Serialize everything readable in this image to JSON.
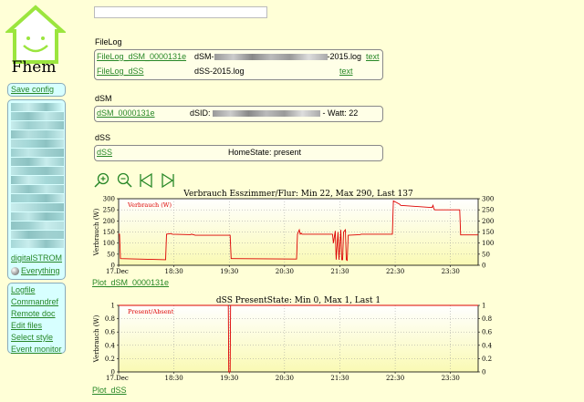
{
  "logo": {
    "text": "Fhem"
  },
  "search": {
    "value": ""
  },
  "menu": {
    "save_config": "Save config",
    "rooms": [
      "digitalSTROM",
      "Everything"
    ],
    "links": [
      "Logfile",
      "Commandref",
      "Remote doc",
      "Edit files",
      "Select style",
      "Event monitor"
    ]
  },
  "filelog": {
    "title": "FileLog",
    "rows": [
      {
        "name": "FileLog_dSM_0000131e",
        "file_prefix": "dSM-",
        "file_suffix": "-2015.log",
        "action": "text"
      },
      {
        "name": "FileLog_dSS",
        "file": "dSS-2015.log",
        "action": "text"
      }
    ]
  },
  "dsm": {
    "title": "dSM",
    "name": "dSM_0000131e",
    "dsid_label": "dSID:",
    "watt": "- Watt: 22"
  },
  "dss": {
    "title": "dSS",
    "name": "dSS",
    "state": "HomeState: present"
  },
  "zoom": {
    "icons": [
      "zoom-in-icon",
      "zoom-out-icon",
      "prev-icon",
      "next-icon"
    ]
  },
  "colors": {
    "background": "#FFFFD7",
    "link": "#278727",
    "menu": "#D7FFFF",
    "line": "#DD0000",
    "fill": "#FAFAB4"
  },
  "chart_data": [
    {
      "type": "line",
      "title": "Verbrauch Esszimmer/Flur: Min 22, Max 290, Last 137",
      "ylabel": "Verbrauch (W)",
      "legend": "Verbrauch (W)",
      "legend_position": "top-left",
      "ylim": [
        0,
        300
      ],
      "yticks": [
        0,
        50,
        100,
        150,
        200,
        250,
        300
      ],
      "xlim": [
        0,
        390
      ],
      "xticks": [
        "17.Dec",
        "18:30",
        "19:30",
        "20:30",
        "21:30",
        "22:30",
        "23:30"
      ],
      "xtick_positions": [
        0,
        60,
        120,
        180,
        240,
        300,
        360
      ],
      "grid": true,
      "x": [
        0,
        1,
        2,
        51,
        52,
        57,
        58,
        78,
        79,
        82,
        83,
        121,
        122,
        193,
        194,
        196,
        197,
        198,
        199,
        232,
        233,
        235,
        236,
        238,
        239,
        241,
        242,
        243,
        244,
        246,
        247,
        248,
        249,
        262,
        263,
        297,
        298,
        305,
        306,
        340,
        341,
        342,
        343,
        370,
        371,
        390
      ],
      "y": [
        140,
        140,
        30,
        25,
        140,
        143,
        140,
        138,
        140,
        137,
        135,
        135,
        30,
        28,
        140,
        160,
        140,
        145,
        140,
        140,
        100,
        155,
        25,
        150,
        25,
        160,
        25,
        25,
        150,
        160,
        25,
        22,
        135,
        138,
        140,
        140,
        290,
        275,
        270,
        260,
        270,
        255,
        250,
        250,
        137,
        137
      ],
      "link": "Plot_dSM_0000131e"
    },
    {
      "type": "line",
      "title": "dSS PresentState: Min 0, Max 1, Last 1",
      "ylabel": "Verbrauch (W)",
      "legend": "Present/Absent",
      "legend_position": "top-left",
      "ylim": [
        0,
        1
      ],
      "yticks": [
        0,
        0.2,
        0.4,
        0.6,
        0.8,
        1
      ],
      "xlim": [
        0,
        390
      ],
      "xticks": [
        "17.Dec",
        "18:30",
        "19:30",
        "20:30",
        "21:30",
        "22:30",
        "23:30"
      ],
      "xtick_positions": [
        0,
        60,
        120,
        180,
        240,
        300,
        360
      ],
      "grid": true,
      "x": [
        0,
        119,
        119.5,
        121,
        121.5,
        390
      ],
      "y": [
        1,
        1,
        0,
        0,
        1,
        1
      ],
      "link": "Plot_dSS"
    }
  ]
}
